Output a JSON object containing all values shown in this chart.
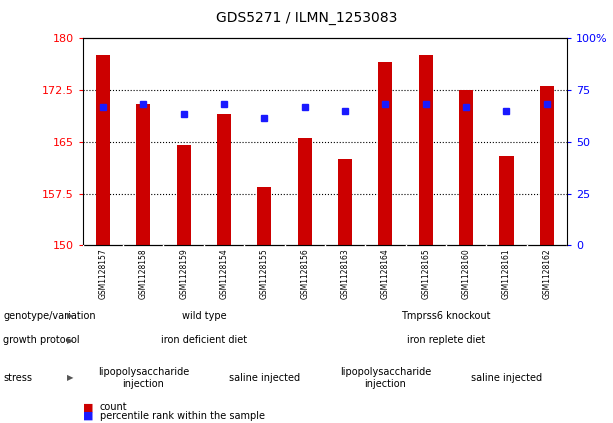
{
  "title": "GDS5271 / ILMN_1253083",
  "samples": [
    "GSM1128157",
    "GSM1128158",
    "GSM1128159",
    "GSM1128154",
    "GSM1128155",
    "GSM1128156",
    "GSM1128163",
    "GSM1128164",
    "GSM1128165",
    "GSM1128160",
    "GSM1128161",
    "GSM1128162"
  ],
  "bar_heights": [
    177.5,
    170.5,
    164.5,
    169.0,
    158.5,
    165.5,
    162.5,
    176.5,
    177.5,
    172.5,
    163.0,
    173.0
  ],
  "percentile_values": [
    170.0,
    170.5,
    169.0,
    170.5,
    168.5,
    170.0,
    169.5,
    170.5,
    170.5,
    170.0,
    169.5,
    170.5
  ],
  "ylim_left": [
    150,
    180
  ],
  "ylim_right": [
    0,
    100
  ],
  "yticks_left": [
    150,
    157.5,
    165,
    172.5,
    180
  ],
  "yticks_right": [
    0,
    25,
    50,
    75,
    100
  ],
  "bar_color": "#cc0000",
  "percentile_color": "#1a1aff",
  "bar_width": 0.35,
  "row_labels": [
    "genotype/variation",
    "growth protocol",
    "stress"
  ],
  "legend_count": "count",
  "legend_percentile": "percentile rank within the sample",
  "row_configs": [
    {
      "segments": [
        {
          "cs": 0,
          "ce": 5,
          "color": "#aaeaaa",
          "label": "wild type"
        },
        {
          "cs": 6,
          "ce": 11,
          "color": "#44cc44",
          "label": "Tmprss6 knockout"
        }
      ]
    },
    {
      "segments": [
        {
          "cs": 0,
          "ce": 5,
          "color": "#8877dd",
          "label": "iron deficient diet"
        },
        {
          "cs": 6,
          "ce": 11,
          "color": "#bbaaee",
          "label": "iron replete diet"
        }
      ]
    },
    {
      "segments": [
        {
          "cs": 0,
          "ce": 2,
          "color": "#ee8888",
          "label": "lipopolysaccharide\ninjection"
        },
        {
          "cs": 3,
          "ce": 5,
          "color": "#dd9988",
          "label": "saline injected"
        },
        {
          "cs": 6,
          "ce": 8,
          "color": "#f0c0b8",
          "label": "lipopolysaccharide\ninjection"
        },
        {
          "cs": 9,
          "ce": 11,
          "color": "#dd9988",
          "label": "saline injected"
        }
      ]
    }
  ]
}
